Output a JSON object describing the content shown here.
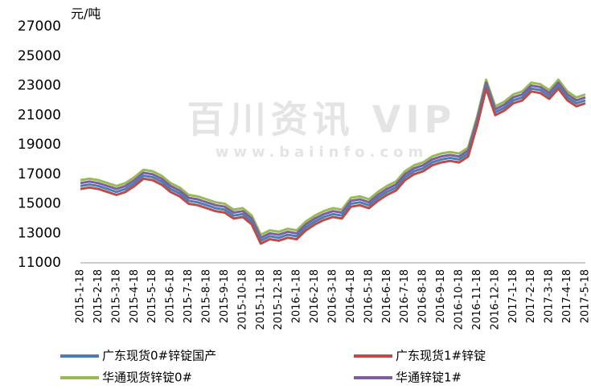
{
  "chart_data": {
    "type": "line",
    "y_unit": "元/吨",
    "watermark": "百川资讯 VIP",
    "watermark_url": "www.baiinfo.com",
    "categories": [
      "2015-1-18",
      null,
      "2015-2-18",
      null,
      "2015-3-18",
      null,
      "2015-4-18",
      null,
      "2015-5-18",
      null,
      "2015-6-18",
      null,
      "2015-7-18",
      null,
      "2015-8-18",
      null,
      "2015-9-18",
      null,
      "2015-10-18",
      null,
      "2015-11-18",
      null,
      "2015-12-18",
      null,
      "2016-1-18",
      null,
      "2016-2-18",
      null,
      "2016-3-18",
      null,
      "2016-4-18",
      null,
      "2016-5-18",
      null,
      "2016-6-18",
      null,
      "2016-7-18",
      null,
      "2016-8-18",
      null,
      "2016-9-18",
      null,
      "2016-10-18",
      null,
      "2016-11-18",
      null,
      "2016-12-18",
      null,
      "2017-1-18",
      null,
      "2017-2-18",
      null,
      "2017-3-18",
      null,
      "2017-4-18",
      null,
      "2017-5-18"
    ],
    "series": [
      {
        "name": "广东现货0#锌锭国产",
        "color": "#4a7fb5",
        "values": [
          16200,
          16300,
          16200,
          16000,
          15800,
          16000,
          16400,
          16900,
          16800,
          16500,
          16000,
          15700,
          15200,
          15100,
          14900,
          14700,
          14600,
          14200,
          14300,
          13800,
          12500,
          12800,
          12700,
          12900,
          12800,
          13400,
          13800,
          14100,
          14300,
          14200,
          15000,
          15100,
          14900,
          15400,
          15800,
          16100,
          16800,
          17200,
          17400,
          17800,
          18000,
          18100,
          18000,
          18400,
          20500,
          23000,
          21200,
          21500,
          22000,
          22200,
          22800,
          22700,
          22300,
          23000,
          22200,
          21800,
          22000
        ]
      },
      {
        "name": "广东现货1#锌锭",
        "color": "#be4b48",
        "values": [
          16000,
          16100,
          16000,
          15800,
          15600,
          15800,
          16200,
          16700,
          16600,
          16300,
          15800,
          15500,
          15000,
          14900,
          14700,
          14500,
          14400,
          14000,
          14100,
          13600,
          12300,
          12600,
          12500,
          12700,
          12600,
          13200,
          13600,
          13900,
          14100,
          14000,
          14800,
          14900,
          14700,
          15200,
          15600,
          15900,
          16600,
          17000,
          17200,
          17600,
          17800,
          17900,
          17800,
          18200,
          20300,
          22800,
          21000,
          21300,
          21800,
          22000,
          22600,
          22500,
          22100,
          22800,
          22000,
          21600,
          21800
        ]
      },
      {
        "name": "华通现货锌锭0#",
        "color": "#98b954",
        "values": [
          16600,
          16700,
          16600,
          16400,
          16200,
          16400,
          16800,
          17300,
          17200,
          16900,
          16400,
          16100,
          15600,
          15500,
          15300,
          15100,
          15000,
          14600,
          14700,
          14200,
          12900,
          13200,
          13100,
          13300,
          13200,
          13800,
          14200,
          14500,
          14700,
          14600,
          15400,
          15500,
          15300,
          15800,
          16200,
          16500,
          17200,
          17600,
          17800,
          18200,
          18400,
          18500,
          18400,
          18800,
          20900,
          23400,
          21600,
          21900,
          22400,
          22600,
          23200,
          23100,
          22700,
          23400,
          22600,
          22200,
          22400
        ]
      },
      {
        "name": "华通锌锭1#",
        "color": "#7d5fa0",
        "values": [
          16400,
          16500,
          16400,
          16200,
          16000,
          16200,
          16600,
          17100,
          17000,
          16700,
          16200,
          15900,
          15400,
          15300,
          15100,
          14900,
          14800,
          14400,
          14500,
          14000,
          12700,
          13000,
          12900,
          13100,
          13000,
          13600,
          14000,
          14300,
          14500,
          14400,
          15200,
          15300,
          15100,
          15600,
          16000,
          16300,
          17000,
          17400,
          17600,
          18000,
          18200,
          18300,
          18200,
          18600,
          20700,
          23200,
          21400,
          21700,
          22200,
          22400,
          23000,
          22900,
          22500,
          23200,
          22400,
          22000,
          22200
        ]
      }
    ],
    "ylim": [
      11000,
      27000
    ],
    "yticks": [
      11000,
      13000,
      15000,
      17000,
      19000,
      21000,
      23000,
      25000,
      27000
    ],
    "grid": false
  }
}
